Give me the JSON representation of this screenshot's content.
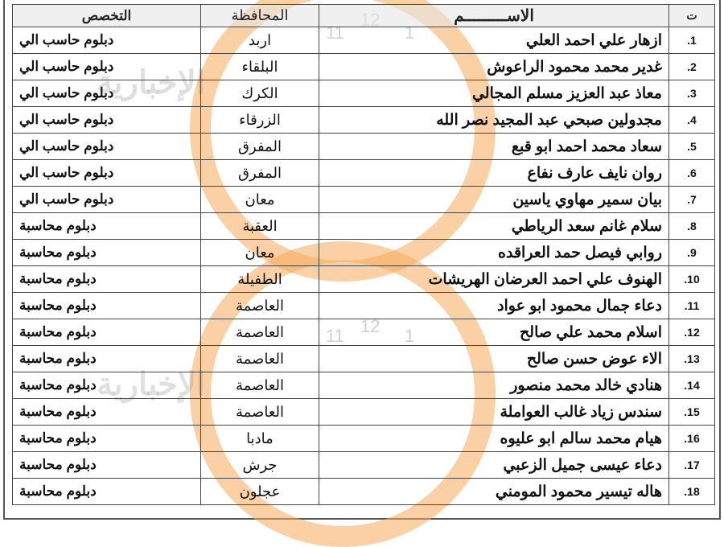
{
  "header": {
    "number": "ت",
    "name": "الاســـــــــم",
    "governorate": "المحافظة",
    "specialty": "التخصص"
  },
  "rows": [
    {
      "number": "1.",
      "name": "ازهار علي احمد العلي",
      "governorate": "اربد",
      "specialty": "دبلوم حاسب الي"
    },
    {
      "number": "2.",
      "name": "غدير محمد محمود الراعوش",
      "governorate": "البلقاء",
      "specialty": "دبلوم حاسب الي"
    },
    {
      "number": "3.",
      "name": "معاذ عبد العزيز مسلم المجالي",
      "governorate": "الكرك",
      "specialty": "دبلوم حاسب الي"
    },
    {
      "number": "4.",
      "name": "مجدولين صبحي عبد المجيد نصر الله",
      "governorate": "الزرقاء",
      "specialty": "دبلوم حاسب الي"
    },
    {
      "number": "5.",
      "name": "سعاد محمد احمد ابو قبع",
      "governorate": "المفرق",
      "specialty": "دبلوم حاسب الي"
    },
    {
      "number": "6.",
      "name": "روان نايف عارف نفاع",
      "governorate": "المفرق",
      "specialty": "دبلوم حاسب الي"
    },
    {
      "number": "7.",
      "name": "بيان سمير مهاوي ياسين",
      "governorate": "معان",
      "specialty": "دبلوم حاسب الي"
    },
    {
      "number": "8.",
      "name": "سلام غانم سعد الرياطي",
      "governorate": "العقبة",
      "specialty": "دبلوم محاسبة"
    },
    {
      "number": "9.",
      "name": "روابي فيصل حمد العراقده",
      "governorate": "معان",
      "specialty": "دبلوم محاسبة"
    },
    {
      "number": "10.",
      "name": "الهنوف علي احمد العرضان الهريشات",
      "governorate": "الطفيلة",
      "specialty": "دبلوم محاسبة"
    },
    {
      "number": "11.",
      "name": "دعاء جمال محمود ابو عواد",
      "governorate": "العاصمة",
      "specialty": "دبلوم محاسبة"
    },
    {
      "number": "12.",
      "name": "اسلام محمد علي صالح",
      "governorate": "العاصمة",
      "specialty": "دبلوم محاسبة"
    },
    {
      "number": "13.",
      "name": "الاء عوض حسن صالح",
      "governorate": "العاصمة",
      "specialty": "دبلوم محاسبة"
    },
    {
      "number": "14.",
      "name": "هنادي خالد محمد منصور",
      "governorate": "العاصمة",
      "specialty": "دبلوم محاسبة"
    },
    {
      "number": "15.",
      "name": "سندس زياد غالب العواملة",
      "governorate": "العاصمة",
      "specialty": "دبلوم محاسبة"
    },
    {
      "number": "16.",
      "name": "هيام محمد سالم ابو عليوه",
      "governorate": "مادبا",
      "specialty": "دبلوم محاسبة"
    },
    {
      "number": "17.",
      "name": "دعاء عيسى جميل الزعبي",
      "governorate": "جرش",
      "specialty": "دبلوم محاسبة"
    },
    {
      "number": "18.",
      "name": "هاله تيسير محمود المومني",
      "governorate": "عجلون",
      "specialty": "دبلوم محاسبة"
    }
  ],
  "watermark": {
    "text": "الإخبارية",
    "colors": {
      "ring": "#f5aa5a",
      "logo": "#8c8c8c"
    }
  }
}
